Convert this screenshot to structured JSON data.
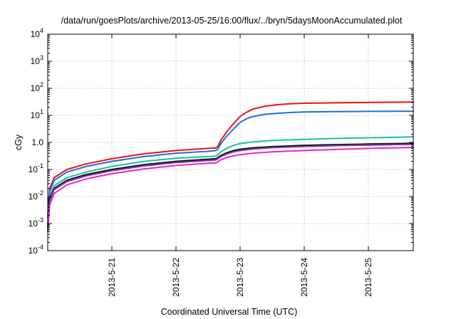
{
  "chart_data": {
    "type": "line",
    "title": "/data/run/goesPlots/archive/2013-05-25/16:00/flux/../bryn/5daysMoonAccumulated.plot",
    "xlabel": "Coordinated Universal Time (UTC)",
    "ylabel": "cGy",
    "yscale": "log",
    "ylim": [
      0.0001,
      10000
    ],
    "xlim": [
      0.0,
      5.7
    ],
    "x_ticks": [
      {
        "x": 1.0,
        "label": "2013-5-21"
      },
      {
        "x": 2.0,
        "label": "2013-5-22"
      },
      {
        "x": 3.0,
        "label": "2013-5-23"
      },
      {
        "x": 4.0,
        "label": "2013-5-24"
      },
      {
        "x": 5.0,
        "label": "2013-5-25"
      }
    ],
    "y_ticks": [
      {
        "value": 0.0001,
        "base": "10",
        "exp": "-4"
      },
      {
        "value": 0.001,
        "base": "10",
        "exp": "-3"
      },
      {
        "value": 0.01,
        "base": "10",
        "exp": "-2"
      },
      {
        "value": 0.1,
        "base": "10",
        "exp": "-1"
      },
      {
        "value": 1,
        "base": "1.0",
        "exp": ""
      },
      {
        "value": 10,
        "base": "10",
        "exp": "1"
      },
      {
        "value": 100,
        "base": "10",
        "exp": "2"
      },
      {
        "value": 1000,
        "base": "10",
        "exp": "3"
      },
      {
        "value": 10000,
        "base": "10",
        "exp": "4"
      }
    ],
    "grid": true,
    "legend": "none",
    "series": [
      {
        "color": "#ee1111",
        "x": [
          0.0,
          0.03,
          0.1,
          0.3,
          0.6,
          1.0,
          1.5,
          2.0,
          2.5,
          2.62,
          2.65,
          2.7,
          2.8,
          2.9,
          3.0,
          3.1,
          3.2,
          3.4,
          3.6,
          3.8,
          4.0,
          4.5,
          5.0,
          5.7
        ],
        "y": [
          0.002,
          0.02,
          0.05,
          0.1,
          0.16,
          0.25,
          0.38,
          0.5,
          0.6,
          0.62,
          0.7,
          1.2,
          2.6,
          5.0,
          9.0,
          13.0,
          17.0,
          22.0,
          25.0,
          27.0,
          28.0,
          29.0,
          30.0,
          31.0
        ]
      },
      {
        "color": "#1a6fe0",
        "x": [
          0.0,
          0.03,
          0.1,
          0.3,
          0.6,
          1.0,
          1.5,
          2.0,
          2.5,
          2.62,
          2.65,
          2.7,
          2.8,
          2.9,
          3.0,
          3.1,
          3.2,
          3.4,
          3.6,
          3.8,
          4.0,
          4.5,
          5.0,
          5.7
        ],
        "y": [
          0.0015,
          0.015,
          0.04,
          0.08,
          0.13,
          0.2,
          0.3,
          0.4,
          0.47,
          0.5,
          0.55,
          0.9,
          1.8,
          3.2,
          5.5,
          7.5,
          9.0,
          11.0,
          12.0,
          12.8,
          13.3,
          13.8,
          14.0,
          14.2
        ]
      },
      {
        "color": "#17c2a0",
        "x": [
          0.0,
          0.03,
          0.1,
          0.3,
          0.6,
          1.0,
          1.5,
          2.0,
          2.5,
          2.62,
          2.65,
          2.7,
          2.8,
          2.9,
          3.0,
          3.2,
          3.5,
          4.0,
          4.5,
          5.0,
          5.7
        ],
        "y": [
          0.001,
          0.01,
          0.025,
          0.05,
          0.08,
          0.13,
          0.2,
          0.26,
          0.3,
          0.31,
          0.34,
          0.45,
          0.62,
          0.78,
          0.9,
          1.05,
          1.18,
          1.3,
          1.4,
          1.48,
          1.6
        ]
      },
      {
        "color": "#111111",
        "x": [
          0.0,
          0.03,
          0.1,
          0.3,
          0.6,
          1.0,
          1.5,
          2.0,
          2.5,
          2.62,
          2.65,
          2.7,
          2.8,
          2.9,
          3.0,
          3.2,
          3.5,
          4.0,
          4.5,
          5.0,
          5.7
        ],
        "y": [
          0.0008,
          0.008,
          0.02,
          0.04,
          0.065,
          0.1,
          0.15,
          0.2,
          0.24,
          0.25,
          0.27,
          0.33,
          0.42,
          0.5,
          0.56,
          0.63,
          0.7,
          0.78,
          0.83,
          0.87,
          0.92
        ]
      },
      {
        "color": "#7a3aa0",
        "x": [
          0.0,
          0.03,
          0.1,
          0.3,
          0.6,
          1.0,
          1.5,
          2.0,
          2.5,
          2.62,
          2.65,
          2.7,
          2.8,
          2.9,
          3.0,
          3.2,
          3.5,
          4.0,
          4.5,
          5.0,
          5.7
        ],
        "y": [
          0.0007,
          0.007,
          0.018,
          0.036,
          0.058,
          0.09,
          0.135,
          0.18,
          0.215,
          0.225,
          0.245,
          0.3,
          0.38,
          0.45,
          0.5,
          0.57,
          0.64,
          0.71,
          0.76,
          0.8,
          0.85
        ]
      },
      {
        "color": "#ee22cc",
        "x": [
          0.0,
          0.03,
          0.1,
          0.3,
          0.6,
          1.0,
          1.5,
          2.0,
          2.5,
          2.62,
          2.65,
          2.7,
          2.8,
          2.9,
          3.0,
          3.2,
          3.5,
          4.0,
          4.5,
          5.0,
          5.7
        ],
        "y": [
          0.0005,
          0.005,
          0.013,
          0.027,
          0.045,
          0.07,
          0.105,
          0.14,
          0.17,
          0.175,
          0.19,
          0.23,
          0.28,
          0.32,
          0.35,
          0.4,
          0.45,
          0.5,
          0.55,
          0.6,
          0.65
        ]
      }
    ]
  }
}
